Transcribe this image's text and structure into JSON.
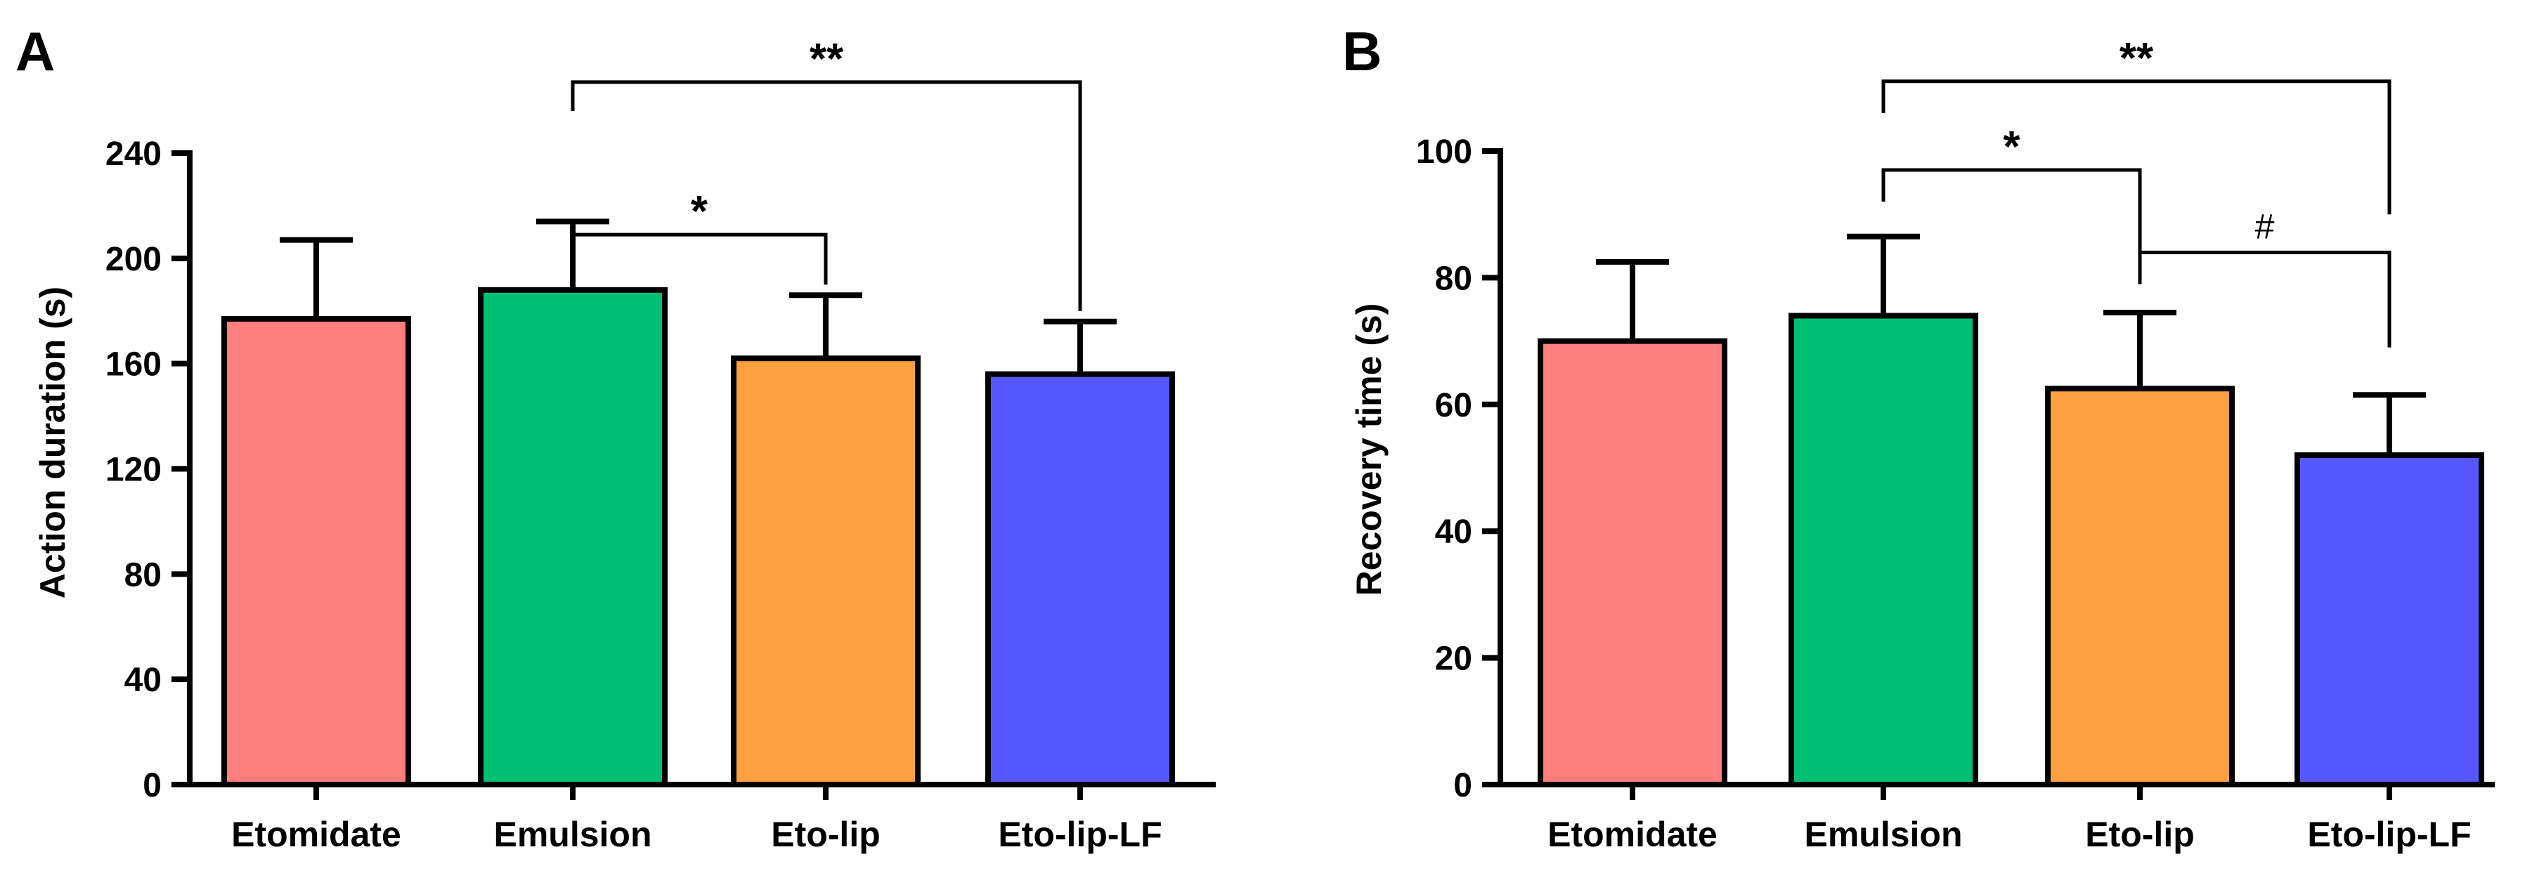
{
  "chart_data": [
    {
      "type": "bar",
      "panel": "A",
      "title": "",
      "xlabel": "",
      "ylabel": "Action duration (s)",
      "categories": [
        "Etomidate",
        "Emulsion",
        "Eto-lip",
        "Eto-lip-LF"
      ],
      "values": [
        177,
        188,
        162,
        156
      ],
      "errors": [
        30,
        26,
        24,
        20
      ],
      "colors": [
        "#ff7f7f",
        "#00bf73",
        "#ffa040",
        "#5757ff"
      ],
      "ylim": [
        0,
        240
      ],
      "yticks": [
        0,
        40,
        80,
        120,
        160,
        200,
        240
      ],
      "ytick_labels": [
        "0",
        "40",
        "80",
        "120",
        "160",
        "200",
        "240"
      ],
      "significance": [
        {
          "from": 1,
          "to": 2,
          "label": "*",
          "y": 209,
          "left_drop_to": 198,
          "right_drop_to": 190,
          "style": "bold"
        },
        {
          "from": 1,
          "to": 3,
          "label": "**",
          "y": 267,
          "left_drop_to": 256,
          "right_drop_to": 180,
          "style": "bold"
        }
      ]
    },
    {
      "type": "bar",
      "panel": "B",
      "title": "",
      "xlabel": "",
      "ylabel": "Recovery time (s)",
      "categories": [
        "Etomidate",
        "Emulsion",
        "Eto-lip",
        "Eto-lip-LF"
      ],
      "values": [
        70,
        74,
        62.5,
        52
      ],
      "errors": [
        12.5,
        12.5,
        12,
        9.5
      ],
      "colors": [
        "#ff7f7f",
        "#00bf73",
        "#ffa040",
        "#5757ff"
      ],
      "ylim": [
        0,
        100
      ],
      "yticks": [
        0,
        20,
        40,
        60,
        80,
        100
      ],
      "ytick_labels": [
        "0",
        "20",
        "40",
        "60",
        "80",
        "100"
      ],
      "significance": [
        {
          "from": 1,
          "to": 2,
          "label": "*",
          "y": 97,
          "left_drop_to": 92,
          "right_drop_to": 79,
          "style": "bold"
        },
        {
          "from": 1,
          "to": 3,
          "label": "**",
          "y": 111,
          "left_drop_to": 106,
          "right_drop_to": 90,
          "style": "bold"
        },
        {
          "from": 2,
          "to": 3,
          "label": "#",
          "y": 84,
          "left_drop_to": 79,
          "right_drop_to": 69,
          "style": "normal"
        }
      ]
    }
  ]
}
